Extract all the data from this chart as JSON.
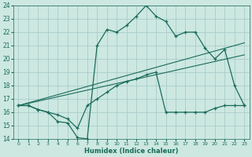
{
  "xlabel": "Humidex (Indice chaleur)",
  "bg_color": "#cce8e0",
  "grid_color": "#aacccc",
  "line_color": "#1a6b5a",
  "xlim": [
    -0.5,
    23.5
  ],
  "ylim": [
    14,
    24
  ],
  "xticks": [
    0,
    1,
    2,
    3,
    4,
    5,
    6,
    7,
    8,
    9,
    10,
    11,
    12,
    13,
    14,
    15,
    16,
    17,
    18,
    19,
    20,
    21,
    22,
    23
  ],
  "yticks": [
    14,
    15,
    16,
    17,
    18,
    19,
    20,
    21,
    22,
    23,
    24
  ],
  "line1_x": [
    0,
    1,
    2,
    3,
    4,
    5,
    6,
    7,
    8,
    9,
    10,
    11,
    12,
    13,
    14,
    15,
    16,
    17,
    18,
    19,
    20,
    21,
    22,
    23
  ],
  "line1_y": [
    16.5,
    16.5,
    16.2,
    16.0,
    15.3,
    15.2,
    14.1,
    14.0,
    21.0,
    22.2,
    22.0,
    22.5,
    23.2,
    24.0,
    23.2,
    22.8,
    21.7,
    22.0,
    22.0,
    20.8,
    20.0,
    20.7,
    18.0,
    16.5
  ],
  "line2_x": [
    0,
    1,
    2,
    3,
    4,
    5,
    6,
    7,
    8,
    9,
    10,
    11,
    12,
    13,
    14,
    15,
    16,
    17,
    18,
    19,
    20,
    21,
    22,
    23
  ],
  "line2_y": [
    16.5,
    16.5,
    16.2,
    16.0,
    15.8,
    15.5,
    14.8,
    16.5,
    17.0,
    17.5,
    18.0,
    18.3,
    18.5,
    18.8,
    19.0,
    16.0,
    16.0,
    16.0,
    16.0,
    16.0,
    16.3,
    16.5,
    16.5,
    16.5
  ],
  "line3_x": [
    0,
    23
  ],
  "line3_y": [
    16.5,
    20.3
  ],
  "line4_x": [
    0,
    23
  ],
  "line4_y": [
    16.5,
    21.2
  ]
}
